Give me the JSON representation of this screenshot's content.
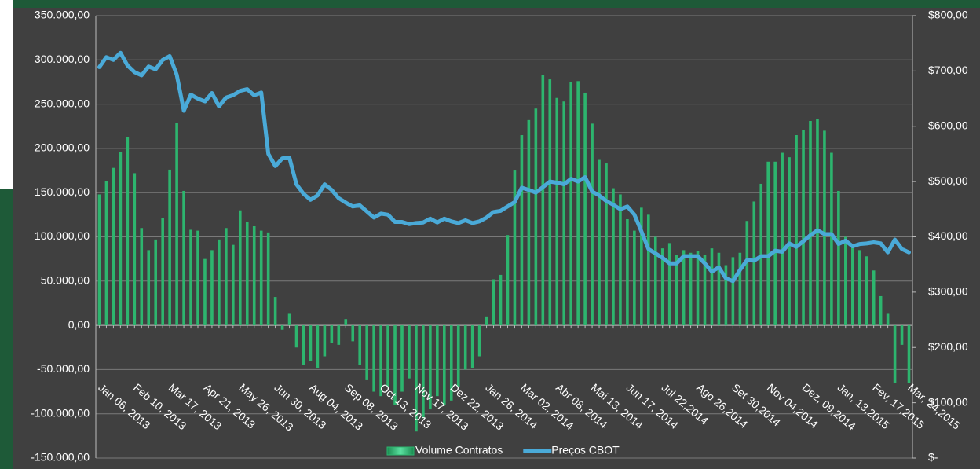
{
  "chart_data": {
    "type": "bar",
    "categories": [
      "Jan 06, 2013",
      null,
      null,
      null,
      null,
      "Feb 10, 2013",
      null,
      null,
      null,
      null,
      "Mar 17, 2013",
      null,
      null,
      null,
      null,
      "Apr 21, 2013",
      null,
      null,
      null,
      null,
      "May 26, 2013",
      null,
      null,
      null,
      null,
      "Jun 30, 2013",
      null,
      null,
      null,
      null,
      "Aug 04, 2013",
      null,
      null,
      null,
      null,
      "Sep 08, 2013",
      null,
      null,
      null,
      null,
      "Oct 13, 2013",
      null,
      null,
      null,
      null,
      "Nov 17, 2013",
      null,
      null,
      null,
      null,
      "Dez 22, 2013",
      null,
      null,
      null,
      null,
      "Jan 26, 2014",
      null,
      null,
      null,
      null,
      "Mar 02, 2014",
      null,
      null,
      null,
      null,
      "Abr 08, 2014",
      null,
      null,
      null,
      null,
      "Mai 13, 2014",
      null,
      null,
      null,
      null,
      "Jun 17, 2014",
      null,
      null,
      null,
      null,
      "Jul 22,2014",
      null,
      null,
      null,
      null,
      "Ago 26,2014",
      null,
      null,
      null,
      null,
      "Set 30,2014",
      null,
      null,
      null,
      null,
      "Nov 04,2014",
      null,
      null,
      null,
      null,
      "Dez, 09,2014",
      null,
      null,
      null,
      null,
      "Jan, 13,2015",
      null,
      null,
      null,
      null,
      "Fev, 17,2015",
      null,
      null,
      null,
      null,
      "Mar, 24,2015"
    ],
    "series": [
      {
        "name": "Volume Contratos",
        "type": "bar",
        "color": "#2db56e",
        "values": [
          148000,
          163000,
          178000,
          196000,
          213000,
          172000,
          110000,
          85000,
          97000,
          121000,
          176000,
          229000,
          152000,
          108000,
          107000,
          75000,
          85000,
          97000,
          110000,
          91000,
          130000,
          117000,
          112000,
          107000,
          105000,
          32000,
          -5000,
          13000,
          -25000,
          -45000,
          -40000,
          -48000,
          -35000,
          -20000,
          -22000,
          7000,
          -18000,
          -45000,
          -62000,
          -75000,
          -80000,
          -70000,
          -90000,
          -75000,
          -60000,
          -120000,
          -105000,
          -95000,
          -80000,
          -90000,
          -85000,
          -70000,
          -50000,
          -48000,
          -35000,
          10000,
          52000,
          57000,
          102000,
          175000,
          215000,
          232000,
          245000,
          283000,
          278000,
          257000,
          253000,
          275000,
          276000,
          263000,
          228000,
          187000,
          183000,
          155000,
          148000,
          120000,
          107000,
          133000,
          125000,
          100000,
          87000,
          93000,
          80000,
          85000,
          82000,
          84000,
          80000,
          87000,
          82000,
          68000,
          77000,
          82000,
          118000,
          140000,
          160000,
          185000,
          185000,
          195000,
          190000,
          215000,
          221000,
          231000,
          233000,
          220000,
          195000,
          152000,
          100000,
          90000,
          85000,
          78000,
          62000,
          33000,
          13000,
          -65000,
          -22000,
          -65000
        ]
      },
      {
        "name": "Preços CBOT",
        "type": "line",
        "axis": "y2",
        "color": "#4aaad8",
        "values": [
          707,
          725,
          720,
          733,
          710,
          698,
          692,
          708,
          703,
          720,
          727,
          693,
          628,
          657,
          650,
          645,
          660,
          636,
          652,
          656,
          664,
          667,
          656,
          661,
          550,
          528,
          542,
          543,
          495,
          478,
          467,
          475,
          495,
          485,
          470,
          462,
          455,
          457,
          446,
          435,
          442,
          440,
          427,
          427,
          423,
          425,
          426,
          433,
          426,
          433,
          428,
          425,
          430,
          425,
          428,
          435,
          445,
          447,
          455,
          463,
          489,
          485,
          480,
          490,
          500,
          498,
          495,
          505,
          500,
          508,
          482,
          475,
          465,
          458,
          450,
          455,
          440,
          410,
          378,
          370,
          362,
          352,
          352,
          365,
          365,
          365,
          352,
          337,
          345,
          325,
          320,
          340,
          358,
          357,
          365,
          365,
          375,
          373,
          388,
          382,
          392,
          403,
          412,
          405,
          405,
          387,
          393,
          383,
          387,
          388,
          390,
          388,
          372,
          395,
          378,
          372
        ]
      }
    ],
    "ylim": [
      -150000,
      350000
    ],
    "yticks": [
      {
        "value": -150000,
        "label": "-150.000,00"
      },
      {
        "value": -100000,
        "label": "-100.000,00"
      },
      {
        "value": -50000,
        "label": "-50.000,00"
      },
      {
        "value": 0,
        "label": "0,00"
      },
      {
        "value": 50000,
        "label": "50.000,00"
      },
      {
        "value": 100000,
        "label": "100.000,00"
      },
      {
        "value": 150000,
        "label": "150.000,00"
      },
      {
        "value": 200000,
        "label": "200.000,00"
      },
      {
        "value": 250000,
        "label": "250.000,00"
      },
      {
        "value": 300000,
        "label": "300.000,00"
      },
      {
        "value": 350000,
        "label": "350.000,00"
      }
    ],
    "y2lim": [
      0,
      800
    ],
    "y2ticks": [
      {
        "value": 0,
        "label": "$-"
      },
      {
        "value": 100,
        "label": "$100,00"
      },
      {
        "value": 200,
        "label": "$200,00"
      },
      {
        "value": 300,
        "label": "$300,00"
      },
      {
        "value": 400,
        "label": "$400,00"
      },
      {
        "value": 500,
        "label": "$500,00"
      },
      {
        "value": 600,
        "label": "$600,00"
      },
      {
        "value": 700,
        "label": "$700,00"
      },
      {
        "value": 800,
        "label": "$800,00"
      }
    ],
    "grid": true,
    "legend": "bottom"
  }
}
